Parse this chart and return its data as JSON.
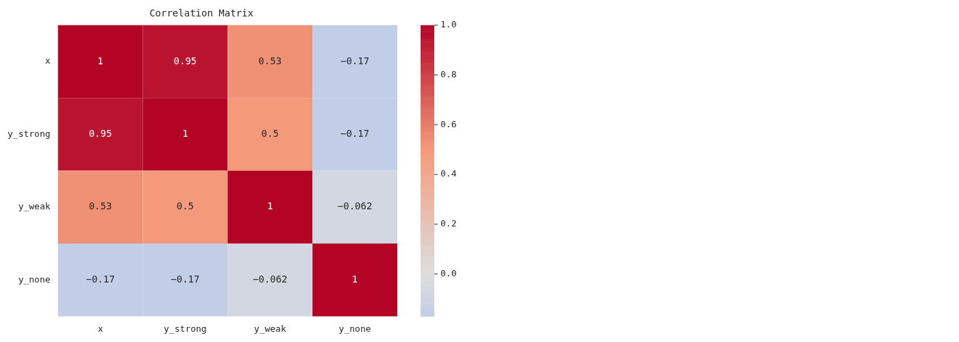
{
  "chart_data": {
    "type": "heatmap",
    "title": "Correlation Matrix",
    "categories": [
      "x",
      "y_strong",
      "y_weak",
      "y_none"
    ],
    "y_categories": [
      "x",
      "y_strong",
      "y_weak",
      "y_none"
    ],
    "cells": [
      [
        1,
        0.95,
        0.53,
        -0.17
      ],
      [
        0.95,
        1,
        0.5,
        -0.17
      ],
      [
        0.53,
        0.5,
        1,
        -0.062
      ],
      [
        -0.17,
        -0.17,
        -0.062,
        1
      ]
    ],
    "cell_labels": [
      [
        "1",
        "0.95",
        "0.53",
        "−0.17"
      ],
      [
        "0.95",
        "1",
        "0.5",
        "−0.17"
      ],
      [
        "0.53",
        "0.5",
        "1",
        "−0.062"
      ],
      [
        "−0.17",
        "−0.17",
        "−0.062",
        "1"
      ]
    ],
    "clim": [
      -0.17,
      1
    ],
    "cticks": [
      {
        "value": 0,
        "label": "0.0"
      },
      {
        "value": 0.2,
        "label": "0.2"
      },
      {
        "value": 0.4,
        "label": "0.4"
      },
      {
        "value": 0.6,
        "label": "0.6"
      },
      {
        "value": 0.8,
        "label": "0.8"
      },
      {
        "value": 1,
        "label": "1.0"
      }
    ]
  }
}
